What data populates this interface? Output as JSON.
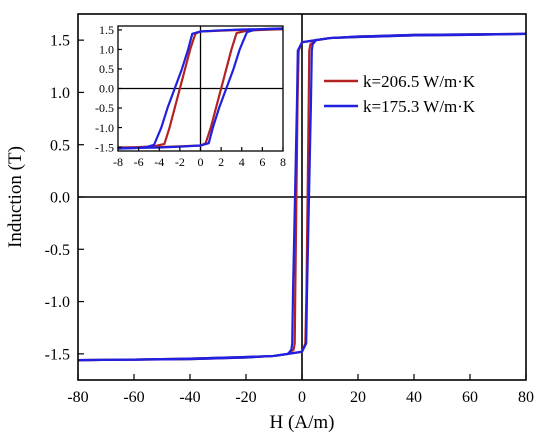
{
  "chart_data": {
    "type": "line",
    "xlabel": "H (A/m)",
    "ylabel": "Induction (T)",
    "xlim": [
      -80,
      80
    ],
    "ylim": [
      -1.75,
      1.75
    ],
    "xticks": [
      "-80",
      "-60",
      "-40",
      "-20",
      "0",
      "20",
      "40",
      "60",
      "80"
    ],
    "yticks": [
      "-1.5",
      "-1.0",
      "-0.5",
      "0.0",
      "0.5",
      "1.0",
      "1.5"
    ],
    "legend_position": "right",
    "zero_lines": true,
    "series": [
      {
        "name": "k=206.5 W/m·K",
        "color": "#b22222",
        "upper_branch": {
          "x": [
            -80,
            -60,
            -40,
            -20,
            -10,
            -5,
            -3.0,
            -2.6,
            -2.4,
            -2.0,
            -1.6,
            -1.2,
            0,
            5,
            10,
            20,
            40,
            60,
            80
          ],
          "y": [
            -1.56,
            -1.555,
            -1.55,
            -1.535,
            -1.52,
            -1.5,
            -1.46,
            -1.4,
            -0.9,
            0.0,
            0.9,
            1.4,
            1.48,
            1.5,
            1.52,
            1.53,
            1.545,
            1.55,
            1.56
          ]
        },
        "lower_branch": {
          "x": [
            -80,
            -60,
            -40,
            -20,
            -10,
            -5,
            0,
            1.2,
            1.6,
            2.0,
            2.4,
            2.6,
            3.0,
            5,
            10,
            20,
            40,
            60,
            80
          ],
          "y": [
            -1.56,
            -1.555,
            -1.545,
            -1.53,
            -1.52,
            -1.5,
            -1.48,
            -1.4,
            -0.9,
            0.0,
            0.9,
            1.4,
            1.46,
            1.5,
            1.52,
            1.535,
            1.55,
            1.555,
            1.56
          ]
        }
      },
      {
        "name": "k=175.3 W/m·K",
        "color": "#2020e0",
        "upper_branch": {
          "x": [
            -80,
            -60,
            -40,
            -20,
            -10,
            -5,
            -3.8,
            -3.5,
            -3.2,
            -2.5,
            -1.8,
            -1.5,
            0,
            5,
            10,
            20,
            40,
            60,
            80
          ],
          "y": [
            -1.56,
            -1.555,
            -1.55,
            -1.535,
            -1.52,
            -1.5,
            -1.46,
            -1.4,
            -0.9,
            0.0,
            0.9,
            1.4,
            1.48,
            1.5,
            1.52,
            1.53,
            1.545,
            1.55,
            1.56
          ]
        },
        "lower_branch": {
          "x": [
            -80,
            -60,
            -40,
            -20,
            -10,
            -5,
            0,
            1.5,
            1.8,
            2.5,
            3.2,
            3.5,
            3.8,
            5,
            10,
            20,
            40,
            60,
            80
          ],
          "y": [
            -1.56,
            -1.555,
            -1.545,
            -1.53,
            -1.52,
            -1.5,
            -1.48,
            -1.4,
            -0.9,
            0.0,
            0.9,
            1.4,
            1.46,
            1.5,
            1.52,
            1.535,
            1.55,
            1.555,
            1.56
          ]
        }
      }
    ],
    "inset": {
      "type": "line",
      "xlim": [
        -8,
        8
      ],
      "ylim": [
        -1.6,
        1.6
      ],
      "xticks": [
        "-8",
        "-6",
        "-4",
        "-2",
        "0",
        "2",
        "4",
        "6",
        "8"
      ],
      "yticks": [
        "-1.5",
        "-1.0",
        "-0.5",
        "0.0",
        "0.5",
        "1.0",
        "1.5"
      ],
      "zero_lines": true,
      "series": [
        {
          "color": "#b22222",
          "upper_branch": {
            "x": [
              -8,
              -6,
              -4.5,
              -3.5,
              -3.0,
              -2.5,
              -2.0,
              -1.5,
              -1.0,
              -0.5,
              0,
              2,
              4,
              6,
              8
            ],
            "y": [
              -1.51,
              -1.5,
              -1.48,
              -1.42,
              -1.0,
              -0.5,
              0.0,
              0.5,
              1.0,
              1.4,
              1.46,
              1.48,
              1.5,
              1.51,
              1.52
            ]
          },
          "lower_branch": {
            "x": [
              -8,
              -6,
              -4,
              -2,
              0,
              0.5,
              1.0,
              1.5,
              2.0,
              2.5,
              3.0,
              3.5,
              4.5,
              6,
              8
            ],
            "y": [
              -1.52,
              -1.51,
              -1.5,
              -1.48,
              -1.46,
              -1.4,
              -1.0,
              -0.5,
              0.0,
              0.5,
              1.0,
              1.42,
              1.48,
              1.5,
              1.52
            ]
          }
        },
        {
          "color": "#2020e0",
          "upper_branch": {
            "x": [
              -8,
              -6,
              -5.2,
              -4.5,
              -3.8,
              -3.2,
              -2.5,
              -1.8,
              -1.2,
              -0.8,
              0,
              2,
              4,
              6,
              8
            ],
            "y": [
              -1.53,
              -1.52,
              -1.5,
              -1.44,
              -1.0,
              -0.5,
              0.0,
              0.5,
              1.0,
              1.4,
              1.46,
              1.49,
              1.51,
              1.52,
              1.54
            ]
          },
          "lower_branch": {
            "x": [
              -8,
              -6,
              -4,
              -2,
              0,
              0.8,
              1.2,
              1.8,
              2.5,
              3.2,
              3.8,
              4.5,
              5.2,
              6,
              8
            ],
            "y": [
              -1.54,
              -1.52,
              -1.51,
              -1.49,
              -1.46,
              -1.4,
              -1.0,
              -0.5,
              0.0,
              0.5,
              1.0,
              1.44,
              1.5,
              1.52,
              1.53
            ]
          }
        }
      ]
    }
  }
}
